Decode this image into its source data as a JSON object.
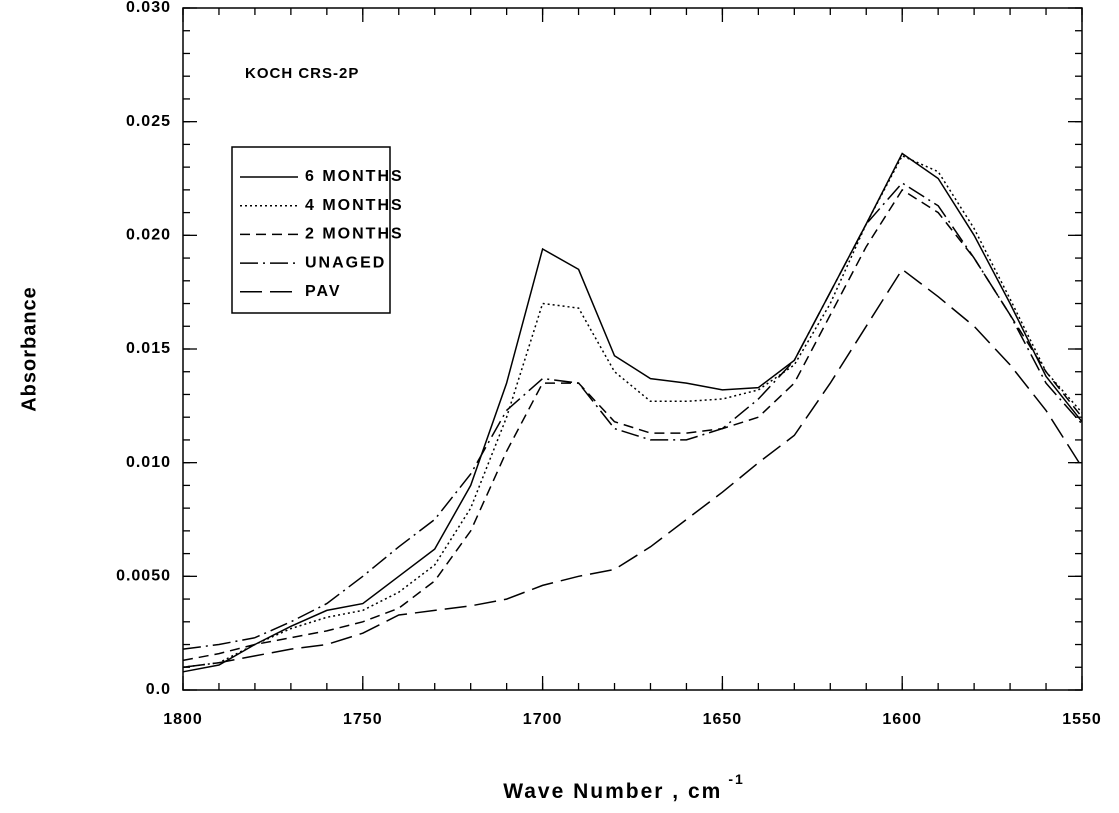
{
  "chart_data": {
    "type": "line",
    "annotation": "KOCH CRS-2P",
    "x_label": "Wave Number , cm",
    "x_label_superscript": "-1",
    "y_label": "Absorbance",
    "x": [
      1800,
      1790,
      1780,
      1770,
      1760,
      1750,
      1740,
      1730,
      1720,
      1710,
      1700,
      1690,
      1680,
      1670,
      1660,
      1650,
      1640,
      1630,
      1620,
      1610,
      1600,
      1590,
      1580,
      1570,
      1560,
      1550
    ],
    "series": [
      {
        "name": "6 MONTHS",
        "color": "#000000",
        "linestyle": "solid",
        "values": [
          0.0008,
          0.0011,
          0.002,
          0.0028,
          0.0035,
          0.0038,
          0.005,
          0.0062,
          0.009,
          0.0135,
          0.0194,
          0.0185,
          0.0147,
          0.0137,
          0.0135,
          0.0132,
          0.0133,
          0.0145,
          0.0175,
          0.0205,
          0.0236,
          0.0225,
          0.02,
          0.017,
          0.0138,
          0.0118
        ]
      },
      {
        "name": "4 MONTHS",
        "color": "#000000",
        "linestyle": "dotted",
        "values": [
          0.001,
          0.0012,
          0.002,
          0.0027,
          0.0032,
          0.0035,
          0.0043,
          0.0055,
          0.008,
          0.012,
          0.017,
          0.0168,
          0.014,
          0.0127,
          0.0127,
          0.0128,
          0.0132,
          0.0143,
          0.017,
          0.0205,
          0.0235,
          0.0228,
          0.0203,
          0.0172,
          0.014,
          0.0122
        ]
      },
      {
        "name": "2 MONTHS",
        "color": "#000000",
        "linestyle": "dashed",
        "values": [
          0.0013,
          0.0016,
          0.002,
          0.0023,
          0.0026,
          0.003,
          0.0036,
          0.0048,
          0.007,
          0.0105,
          0.0135,
          0.0135,
          0.0118,
          0.0113,
          0.0113,
          0.0115,
          0.012,
          0.0135,
          0.0165,
          0.0195,
          0.022,
          0.021,
          0.019,
          0.0165,
          0.014,
          0.012
        ]
      },
      {
        "name": "UNAGED",
        "color": "#000000",
        "linestyle": "dashdot",
        "values": [
          0.0018,
          0.002,
          0.0023,
          0.003,
          0.0038,
          0.005,
          0.0063,
          0.0075,
          0.0095,
          0.0123,
          0.0137,
          0.0135,
          0.0115,
          0.011,
          0.011,
          0.0115,
          0.0128,
          0.0145,
          0.0175,
          0.0205,
          0.0223,
          0.0213,
          0.019,
          0.0165,
          0.0135,
          0.0117
        ]
      },
      {
        "name": "PAV",
        "color": "#000000",
        "linestyle": "longdash",
        "values": [
          0.001,
          0.0012,
          0.0015,
          0.0018,
          0.002,
          0.0025,
          0.0033,
          0.0035,
          0.0037,
          0.004,
          0.0046,
          0.005,
          0.0053,
          0.0063,
          0.0075,
          0.0087,
          0.01,
          0.0112,
          0.0135,
          0.016,
          0.0185,
          0.0173,
          0.016,
          0.0143,
          0.0123,
          0.0098
        ]
      }
    ],
    "xlim": [
      1800,
      1550
    ],
    "xticks": [
      1800,
      1750,
      1700,
      1650,
      1600,
      1550
    ],
    "xminor_step": 10,
    "ylim": [
      0,
      0.03
    ],
    "yticks": [
      {
        "value": 0,
        "label": "0.0"
      },
      {
        "value": 0.005,
        "label": "0.0050"
      },
      {
        "value": 0.01,
        "label": "0.010"
      },
      {
        "value": 0.015,
        "label": "0.015"
      },
      {
        "value": 0.02,
        "label": "0.020"
      },
      {
        "value": 0.025,
        "label": "0.025"
      },
      {
        "value": 0.03,
        "label": "0.030"
      }
    ],
    "yminor_step": 0.001,
    "legend": "upper-left",
    "grid": false
  }
}
